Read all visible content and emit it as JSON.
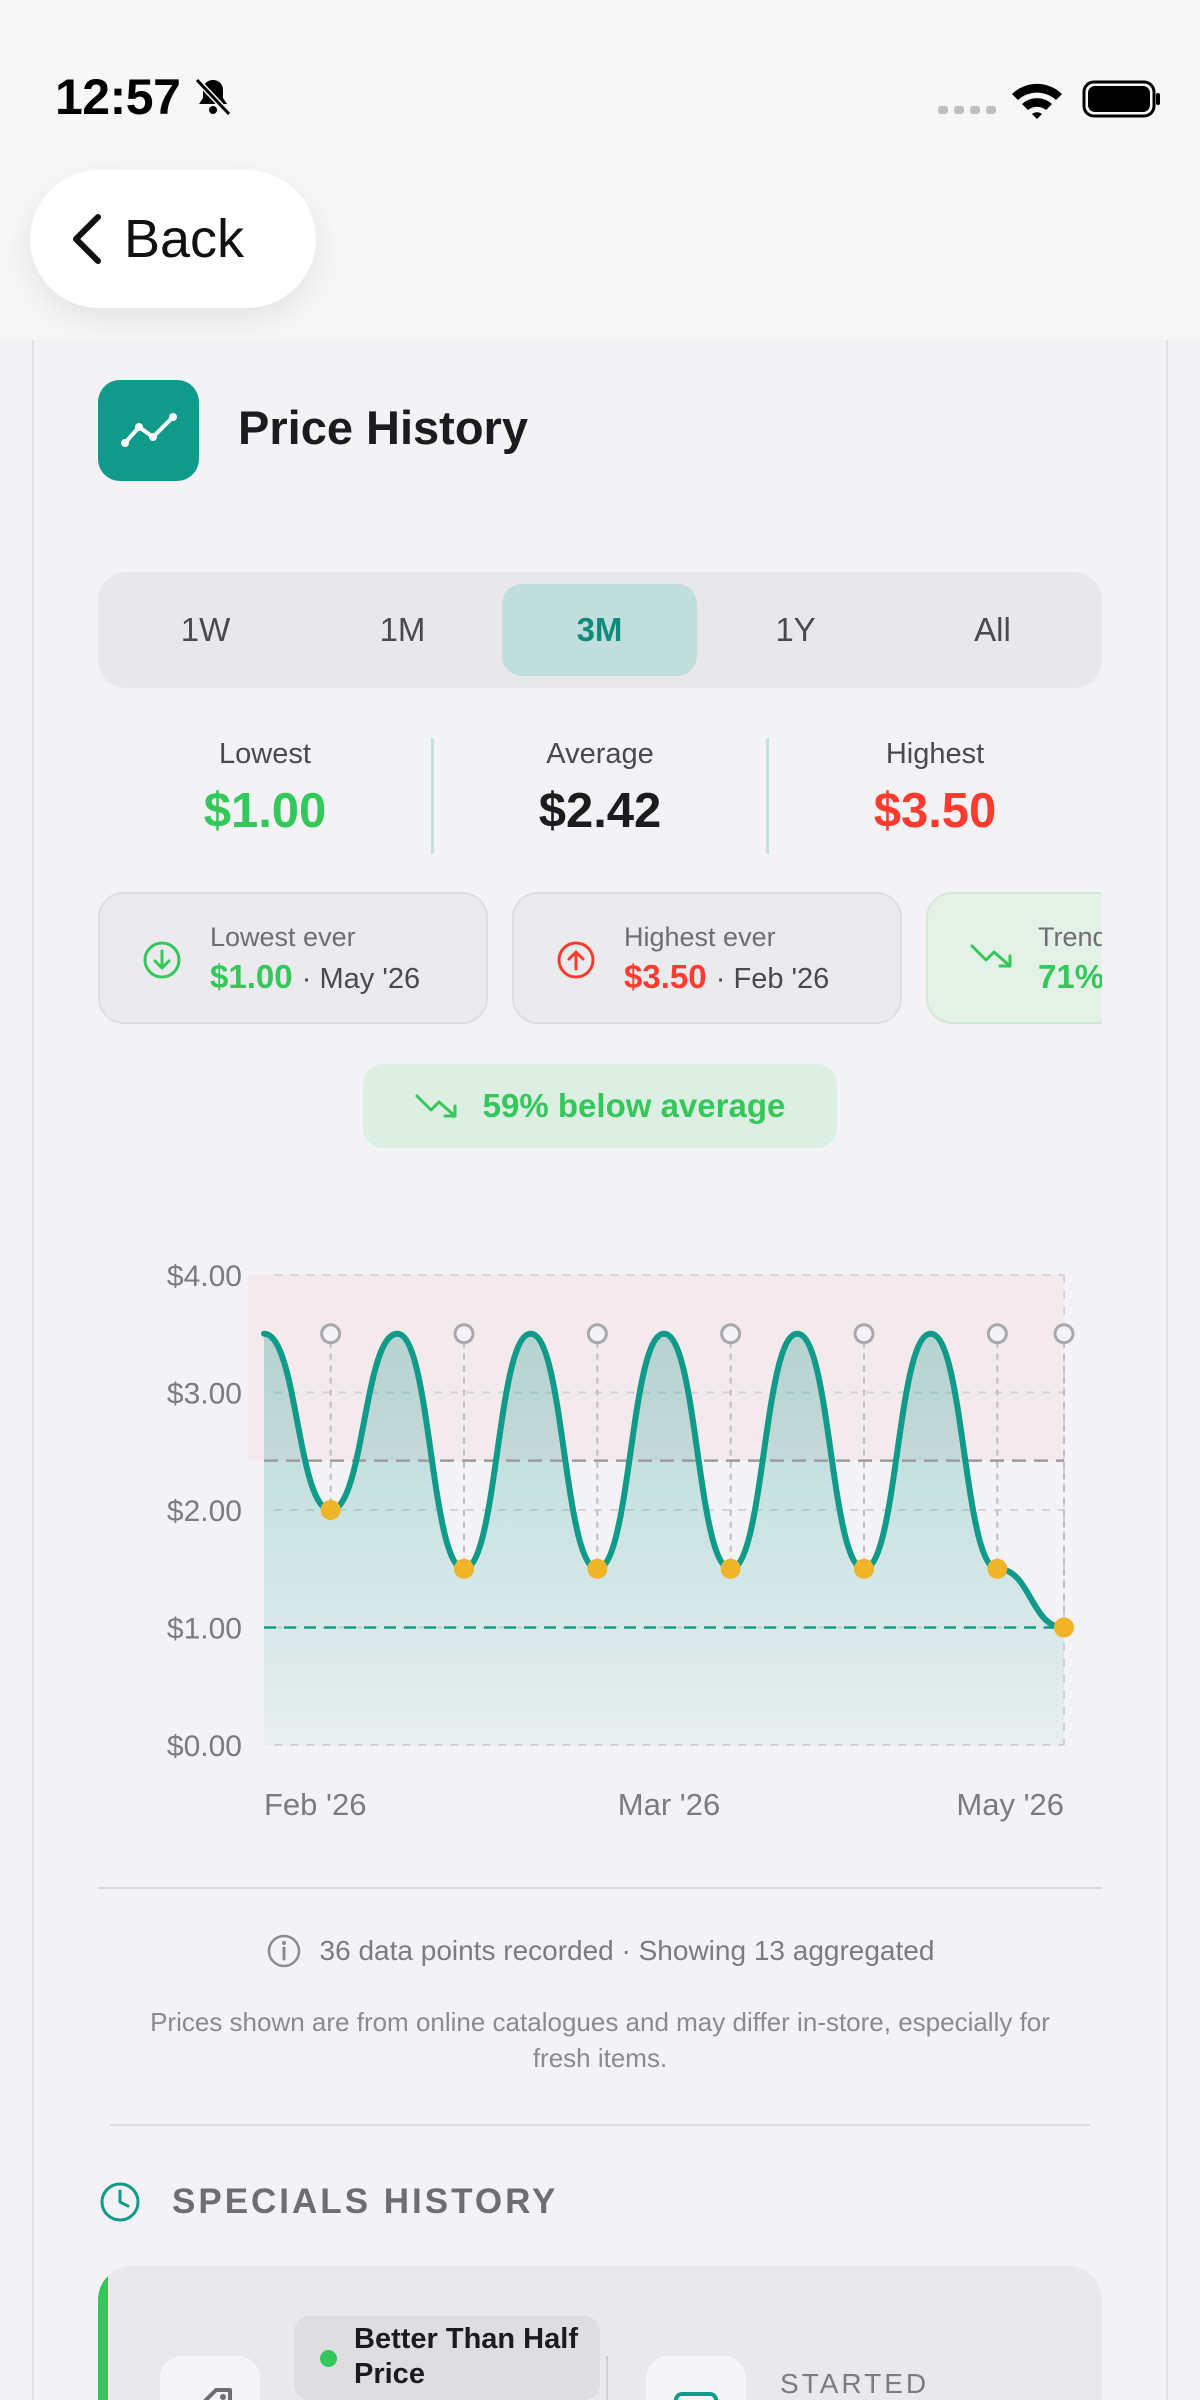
{
  "status_bar": {
    "time": "12:57"
  },
  "nav": {
    "back_label": "Back"
  },
  "card": {
    "title": "Price History"
  },
  "ranges": [
    "1W",
    "1M",
    "3M",
    "1Y",
    "All"
  ],
  "active_range": "3M",
  "stats": {
    "lowest": {
      "label": "Lowest",
      "value": "$1.00"
    },
    "average": {
      "label": "Average",
      "value": "$2.42"
    },
    "highest": {
      "label": "Highest",
      "value": "$3.50"
    }
  },
  "chips": [
    {
      "label": "Lowest ever",
      "value": "$1.00",
      "date": "· May '26"
    },
    {
      "label": "Highest ever",
      "value": "$3.50",
      "date": "· Feb '26"
    },
    {
      "label": "Trend",
      "value": "71%"
    }
  ],
  "below_average": "59% below average",
  "chart_data": {
    "type": "line",
    "y_ticks": [
      "$4.00",
      "$3.00",
      "$2.00",
      "$1.00",
      "$0.00"
    ],
    "x_ticks": [
      "Feb '26",
      "Mar '26",
      "May '26"
    ],
    "ylim": [
      0,
      4
    ],
    "average_line": 2.42,
    "lowest_line": 1.0,
    "series": [
      {
        "values": [
          3.5,
          2.0,
          3.5,
          1.5,
          3.5,
          1.5,
          3.5,
          1.5,
          3.5,
          1.5,
          3.5,
          1.5,
          1.0
        ]
      }
    ],
    "special_points": [
      2.0,
      1.5,
      1.5,
      1.5,
      1.5,
      1.5,
      1.0
    ],
    "grid": true,
    "colors": {
      "line": "#109a8a",
      "special": "#f0b429",
      "marker": "#a8a8ad",
      "high_zone": "#f3e4e8"
    }
  },
  "data_info": "36 data points recorded · Showing 13 aggregated",
  "disclaimer": "Prices shown are from online catalogues and may differ in-store, especially for fresh items.",
  "specials": {
    "heading": "SPECIALS HISTORY",
    "item": {
      "badge": "Better Than Half Price",
      "started_label": "STARTED"
    }
  },
  "colors": {
    "accent": "#109a8a",
    "green": "#34c759",
    "red": "#ff3b30",
    "active_segment_bg": "#bfdedc"
  }
}
